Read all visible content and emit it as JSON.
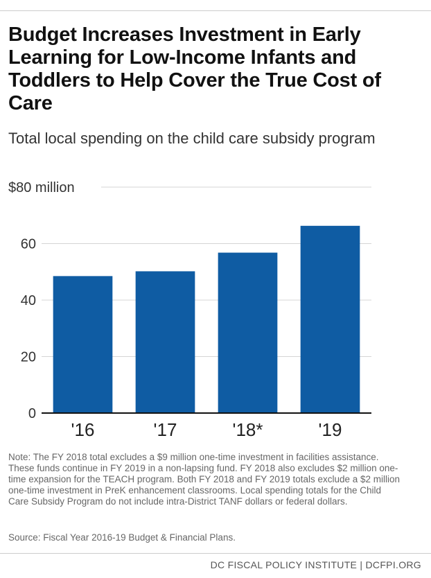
{
  "header": {
    "title": "Budget Increases Investment in Early Learning for Low-Income Infants and Toddlers to Help Cover the True Cost of Care",
    "subtitle": "Total local spending on the child care subsidy program"
  },
  "chart_data": {
    "type": "bar",
    "categories": [
      "'16",
      "'17",
      "'18*",
      "'19"
    ],
    "values": [
      48.5,
      50.2,
      56.8,
      66.3
    ],
    "ylim": [
      0,
      80
    ],
    "yticks": [
      0,
      20,
      40,
      60,
      80
    ],
    "ytick_labels": [
      "0",
      "20",
      "40",
      "60",
      "$80 million"
    ],
    "xlabel": "",
    "ylabel": "",
    "grid": true,
    "bar_color": "#0f5ca3"
  },
  "notes": {
    "note": "Note: The FY 2018 total excludes a $9 million one-time investment in facilities assistance. These funds continue in FY 2019 in a non-lapsing fund. FY 2018 also excludes $2 million one-time expansion for the TEACH program. Both FY 2018 and FY 2019 totals exclude a $2 million one-time investment in PreK enhancement classrooms. Local spending totals for the Child Care Subsidy Program do not include intra-District TANF dollars or federal dollars.",
    "source": "Source: Fiscal Year 2016-19 Budget & Financial Plans."
  },
  "footer": {
    "credit": "DC FISCAL POLICY INSTITUTE | DCFPI.ORG"
  }
}
